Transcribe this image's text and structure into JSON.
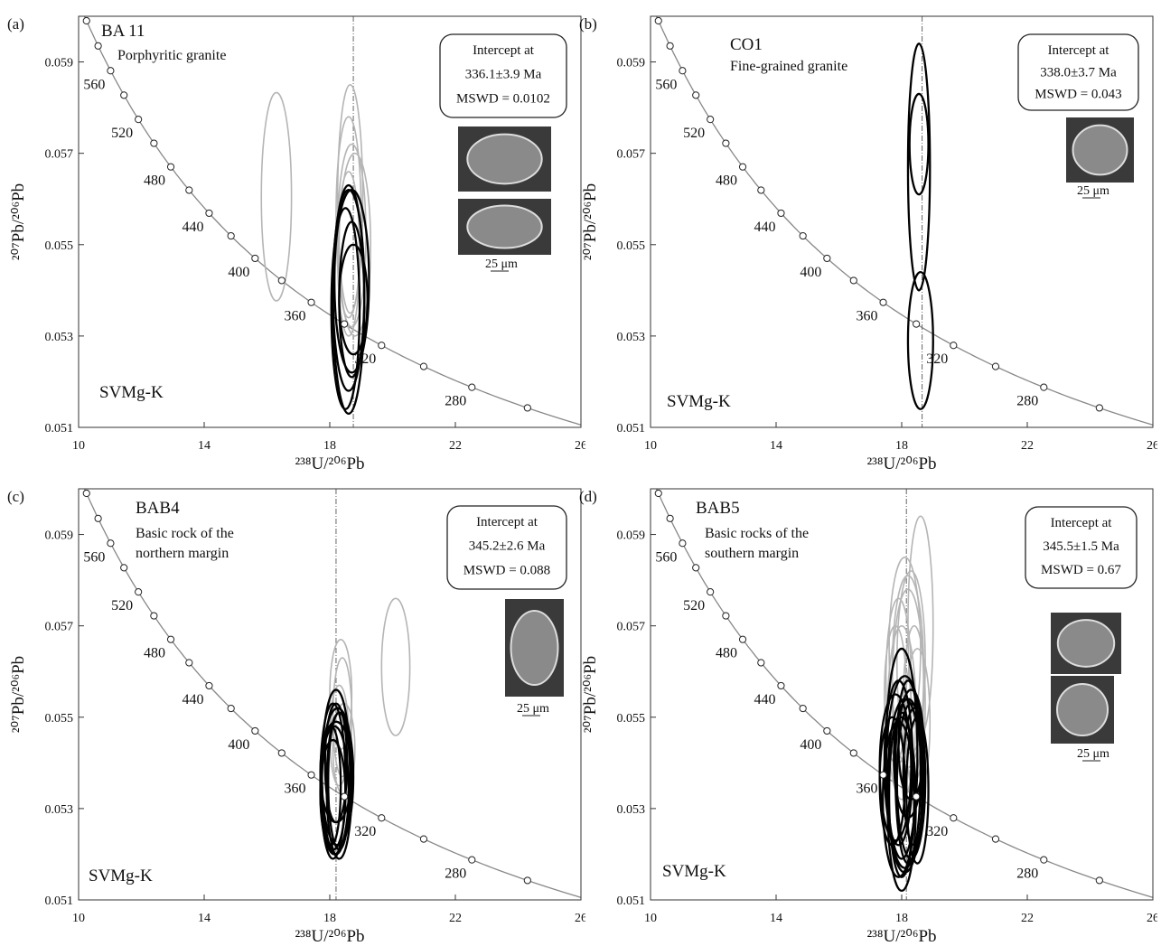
{
  "chart_data": [
    {
      "type": "concordia",
      "panel_label": "(a)",
      "title": "BA 11",
      "subtitle": [
        "Porphyritic granite"
      ],
      "intercept": [
        "Intercept at",
        "336.1±3.9 Ma",
        "MSWD = 0.0102"
      ],
      "scale_label": "25 μm",
      "region_label": "SVMg-K",
      "x_label": "²³⁸U/²⁰⁶Pb",
      "y_label": "²⁰⁷Pb/²⁰⁶Pb",
      "xlim": [
        10,
        26
      ],
      "ylim": [
        0.051,
        0.06
      ],
      "xticks": [
        10,
        14,
        18,
        22,
        26
      ],
      "yticks": [
        0.051,
        0.053,
        0.055,
        0.057,
        0.059
      ],
      "concordia_ages": [
        600,
        580,
        560,
        540,
        520,
        500,
        480,
        460,
        440,
        420,
        400,
        380,
        360,
        340,
        320,
        300,
        280,
        260
      ],
      "age_labels": [
        560,
        520,
        480,
        440,
        400,
        360,
        320,
        280
      ],
      "intercept_line_x": 18.75,
      "series": [
        {
          "color": "#b5b5b5",
          "x": [
            16.3,
            18.65,
            18.6,
            18.7,
            18.8,
            18.6
          ],
          "y": [
            0.05605,
            0.056,
            0.0556,
            0.0552,
            0.055,
            0.0548
          ],
          "x_err": [
            0.48,
            0.4,
            0.4,
            0.45,
            0.5,
            0.35
          ],
          "y_err": [
            0.00228,
            0.0025,
            0.0022,
            0.002,
            0.002,
            0.0018
          ]
        },
        {
          "color": "#000000",
          "x": [
            18.7,
            18.6,
            18.6,
            18.7,
            18.5,
            18.75
          ],
          "y": [
            0.0542,
            0.054,
            0.0538,
            0.0538,
            0.0536,
            0.0538
          ],
          "x_err": [
            0.55,
            0.5,
            0.5,
            0.4,
            0.45,
            0.45
          ],
          "y_err": [
            0.002,
            0.0022,
            0.0025,
            0.0017,
            0.0022,
            0.0012
          ]
        }
      ]
    },
    {
      "type": "concordia",
      "panel_label": "(b)",
      "title": "CO1",
      "subtitle": [
        "Fine-grained granite"
      ],
      "intercept": [
        "Intercept at",
        "338.0±3.7 Ma",
        "MSWD = 0.043"
      ],
      "scale_label": "25 μm",
      "region_label": "SVMg-K",
      "x_label": "²³⁸U/²⁰⁶Pb",
      "y_label": "²⁰⁷Pb/²⁰⁶Pb",
      "xlim": [
        10,
        26
      ],
      "ylim": [
        0.051,
        0.06
      ],
      "xticks": [
        10,
        14,
        18,
        22,
        26
      ],
      "yticks": [
        0.051,
        0.053,
        0.055,
        0.057,
        0.059
      ],
      "concordia_ages": [
        600,
        580,
        560,
        540,
        520,
        500,
        480,
        460,
        440,
        420,
        400,
        380,
        360,
        340,
        320,
        300,
        280,
        260
      ],
      "age_labels": [
        560,
        520,
        480,
        440,
        400,
        360,
        320,
        280
      ],
      "intercept_line_x": 18.65,
      "series": [
        {
          "color": "#000000",
          "x": [
            18.55,
            18.55,
            18.6
          ],
          "y": [
            0.0572,
            0.0567,
            0.0529
          ],
          "x_err": [
            0.3,
            0.35,
            0.4
          ],
          "y_err": [
            0.0011,
            0.0027,
            0.0015
          ]
        }
      ]
    },
    {
      "type": "concordia",
      "panel_label": "(c)",
      "title": "BAB4",
      "subtitle": [
        "Basic rock of the",
        "northern margin"
      ],
      "intercept": [
        "Intercept at",
        "345.2±2.6 Ma",
        "MSWD = 0.088"
      ],
      "scale_label": "25 μm",
      "region_label": "SVMg-K",
      "x_label": "²³⁸U/²⁰⁶Pb",
      "y_label": "²⁰⁷Pb/²⁰⁶Pb",
      "xlim": [
        10,
        26
      ],
      "ylim": [
        0.051,
        0.06
      ],
      "xticks": [
        10,
        14,
        18,
        22,
        26
      ],
      "yticks": [
        0.051,
        0.053,
        0.055,
        0.057,
        0.059
      ],
      "concordia_ages": [
        600,
        580,
        560,
        540,
        520,
        500,
        480,
        460,
        440,
        420,
        400,
        380,
        360,
        340,
        320,
        300,
        280,
        260
      ],
      "age_labels": [
        560,
        520,
        480,
        440,
        400,
        360,
        320,
        280
      ],
      "intercept_line_x": 18.2,
      "series": [
        {
          "color": "#b5b5b5",
          "x": [
            20.1,
            18.35,
            18.4,
            18.3,
            18.45
          ],
          "y": [
            0.0561,
            0.0555,
            0.055,
            0.0546,
            0.0543
          ],
          "x_err": [
            0.45,
            0.35,
            0.3,
            0.3,
            0.35
          ],
          "y_err": [
            0.0015,
            0.0012,
            0.0013,
            0.0011,
            0.001
          ]
        },
        {
          "color": "#000000",
          "x": [
            18.2,
            18.1,
            18.25,
            18.3,
            18.15,
            18.2,
            18.1,
            18.3,
            18.2,
            18.05
          ],
          "y": [
            0.0538,
            0.0536,
            0.0537,
            0.0535,
            0.0534,
            0.054,
            0.0533,
            0.0536,
            0.0538,
            0.0535
          ],
          "x_err": [
            0.45,
            0.4,
            0.5,
            0.4,
            0.45,
            0.35,
            0.4,
            0.35,
            0.5,
            0.3
          ],
          "y_err": [
            0.0018,
            0.0017,
            0.0015,
            0.0016,
            0.0014,
            0.0013,
            0.0012,
            0.0015,
            0.0011,
            0.0013
          ]
        }
      ]
    },
    {
      "type": "concordia",
      "panel_label": "(d)",
      "title": "BAB5",
      "subtitle": [
        "Basic rocks of the",
        "southern margin"
      ],
      "intercept": [
        "Intercept at",
        "345.5±1.5 Ma",
        "MSWD = 0.67"
      ],
      "scale_label": "25 μm",
      "region_label": "SVMg-K",
      "x_label": "²³⁸U/²⁰⁶Pb",
      "y_label": "²⁰⁷Pb/²⁰⁶Pb",
      "xlim": [
        10,
        26
      ],
      "ylim": [
        0.051,
        0.06
      ],
      "xticks": [
        10,
        14,
        18,
        22,
        26
      ],
      "yticks": [
        0.051,
        0.053,
        0.055,
        0.057,
        0.059
      ],
      "concordia_ages": [
        600,
        580,
        560,
        540,
        520,
        500,
        480,
        460,
        440,
        420,
        400,
        380,
        360,
        340,
        320,
        300,
        280,
        260
      ],
      "age_labels": [
        560,
        520,
        480,
        440,
        400,
        360,
        320,
        280
      ],
      "intercept_line_x": 18.15,
      "series": [
        {
          "color": "#b5b5b5",
          "x": [
            18.6,
            18.1,
            18.3,
            17.9,
            18.2,
            18.4,
            18.0,
            18.5,
            17.8,
            18.2
          ],
          "y": [
            0.057,
            0.0565,
            0.0562,
            0.0558,
            0.0556,
            0.0553,
            0.0551,
            0.0549,
            0.0555,
            0.056
          ],
          "x_err": [
            0.4,
            0.5,
            0.45,
            0.4,
            0.5,
            0.35,
            0.45,
            0.4,
            0.35,
            0.5
          ],
          "y_err": [
            0.0024,
            0.002,
            0.002,
            0.0018,
            0.0022,
            0.0017,
            0.0019,
            0.0016,
            0.0015,
            0.0021
          ]
        },
        {
          "color": "#000000",
          "x": [
            18.0,
            17.9,
            18.2,
            18.3,
            17.8,
            18.1,
            18.4,
            18.0,
            17.7,
            18.2,
            18.5,
            17.9,
            18.1,
            18.3,
            18.0
          ],
          "y": [
            0.0542,
            0.054,
            0.0538,
            0.0536,
            0.0539,
            0.0535,
            0.0537,
            0.0533,
            0.0536,
            0.0541,
            0.0534,
            0.0532,
            0.0538,
            0.0544,
            0.0531
          ],
          "x_err": [
            0.5,
            0.45,
            0.4,
            0.45,
            0.5,
            0.55,
            0.35,
            0.4,
            0.4,
            0.45,
            0.35,
            0.5,
            0.6,
            0.4,
            0.45
          ],
          "y_err": [
            0.0023,
            0.0018,
            0.002,
            0.0017,
            0.0016,
            0.0019,
            0.0015,
            0.0018,
            0.0014,
            0.0013,
            0.0016,
            0.0017,
            0.0021,
            0.0012,
            0.0019
          ]
        }
      ]
    }
  ]
}
